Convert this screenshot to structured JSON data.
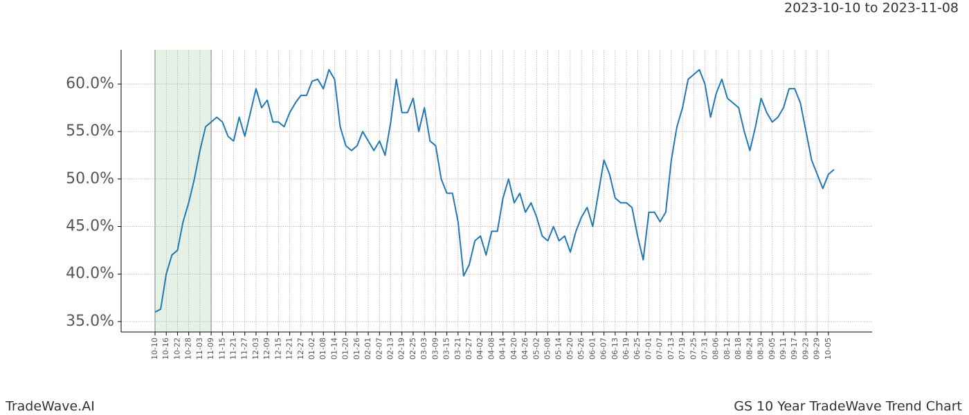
{
  "chart_data": {
    "type": "line",
    "title": "2023-10-10 to 2023-11-08",
    "footer_left": "TradeWave.AI",
    "footer_right": "GS 10 Year TradeWave Trend Chart",
    "categories": [
      "10-10",
      null,
      "10-16",
      null,
      "10-22",
      null,
      "10-28",
      null,
      "11-03",
      null,
      "11-09",
      null,
      "11-15",
      null,
      "11-21",
      null,
      "11-27",
      null,
      "12-03",
      null,
      "12-09",
      null,
      "12-15",
      null,
      "12-21",
      null,
      "12-27",
      null,
      "01-02",
      null,
      "01-08",
      null,
      "01-14",
      null,
      "01-20",
      null,
      "01-26",
      null,
      "02-01",
      null,
      "02-07",
      null,
      "02-13",
      null,
      "02-19",
      null,
      "02-25",
      null,
      "03-03",
      null,
      "03-09",
      null,
      "03-15",
      null,
      "03-21",
      null,
      "03-27",
      null,
      "04-02",
      null,
      "04-08",
      null,
      "04-14",
      null,
      "04-20",
      null,
      "04-26",
      null,
      "05-02",
      null,
      "05-08",
      null,
      "05-14",
      null,
      "05-20",
      null,
      "05-26",
      null,
      "06-01",
      null,
      "06-07",
      null,
      "06-13",
      null,
      "06-19",
      null,
      "06-25",
      null,
      "07-01",
      null,
      "07-07",
      null,
      "07-13",
      null,
      "07-19",
      null,
      "07-25",
      null,
      "07-31",
      null,
      "08-06",
      null,
      "08-12",
      null,
      "08-18",
      null,
      "08-24",
      null,
      "08-30",
      null,
      "09-05",
      null,
      "09-11",
      null,
      "09-17",
      null,
      "09-23",
      null,
      "09-29",
      null,
      "10-05",
      null
    ],
    "series": [
      {
        "name": "GS",
        "color": "#1f77b4",
        "values": [
          36.0,
          36.3,
          40.0,
          42.0,
          42.5,
          45.5,
          47.5,
          50.0,
          53.0,
          55.5,
          56.0,
          56.5,
          56.0,
          54.5,
          54.0,
          56.5,
          54.5,
          57.0,
          59.5,
          57.5,
          58.3,
          56.0,
          56.0,
          55.5,
          57.0,
          58.0,
          58.8,
          58.8,
          60.3,
          60.5,
          59.5,
          61.5,
          60.5,
          55.5,
          53.5,
          53.0,
          53.5,
          55.0,
          54.0,
          53.0,
          54.0,
          52.5,
          56.0,
          60.5,
          57.0,
          57.0,
          58.5,
          55.0,
          57.5,
          54.0,
          53.5,
          50.0,
          48.5,
          48.5,
          45.5,
          39.8,
          41.0,
          43.5,
          44.0,
          42.0,
          44.5,
          44.5,
          48.0,
          50.0,
          47.5,
          48.5,
          46.5,
          47.5,
          46.0,
          44.0,
          43.5,
          45.0,
          43.5,
          44.0,
          42.3,
          44.5,
          46.0,
          47.0,
          45.0,
          48.5,
          52.0,
          50.5,
          48.0,
          47.5,
          47.5,
          47.0,
          44.0,
          41.5,
          46.5,
          46.5,
          45.5,
          46.5,
          52.0,
          55.5,
          57.5,
          60.5,
          61.0,
          61.5,
          60.0,
          56.5,
          59.0,
          60.5,
          58.5,
          58.0,
          57.5,
          55.0,
          53.0,
          55.5,
          58.5,
          57.0,
          56.0,
          56.5,
          57.5,
          59.5,
          59.5,
          58.0,
          55.0,
          52.0,
          50.5,
          49.0,
          50.5,
          51.0
        ]
      }
    ],
    "shade_from": "10-10",
    "shade_to": "11-09",
    "shade_color": "#d5e8d4",
    "ylim": [
      33.9,
      63.6
    ],
    "yticks": [
      {
        "value": 35,
        "label": "35.0%"
      },
      {
        "value": 40,
        "label": "40.0%"
      },
      {
        "value": 45,
        "label": "45.0%"
      },
      {
        "value": 50,
        "label": "50.0%"
      },
      {
        "value": 55,
        "label": "55.0%"
      },
      {
        "value": 60,
        "label": "60.0%"
      }
    ],
    "grid": true
  }
}
